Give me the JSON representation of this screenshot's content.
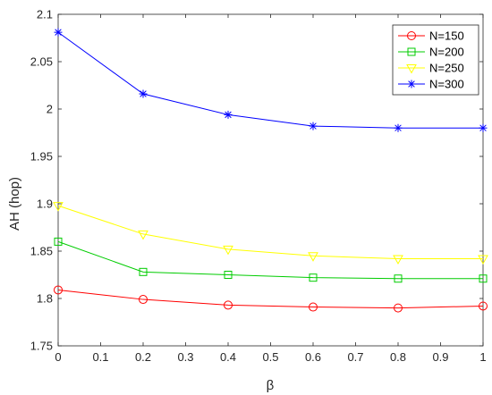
{
  "chart_data": {
    "type": "line",
    "title": "",
    "xlabel": "β",
    "ylabel": "AH (hop)",
    "x": [
      0,
      0.2,
      0.4,
      0.6,
      0.8,
      1.0
    ],
    "xlim": [
      0,
      1
    ],
    "ylim": [
      1.75,
      2.1
    ],
    "xticks": [
      "0",
      "0.1",
      "0.2",
      "0.3",
      "0.4",
      "0.5",
      "0.6",
      "0.7",
      "0.8",
      "0.9",
      "1"
    ],
    "xtick_values": [
      0,
      0.1,
      0.2,
      0.3,
      0.4,
      0.5,
      0.6,
      0.7,
      0.8,
      0.9,
      1.0
    ],
    "yticks": [
      "1.75",
      "1.8",
      "1.85",
      "1.9",
      "1.95",
      "2",
      "2.05",
      "2.1"
    ],
    "ytick_values": [
      1.75,
      1.8,
      1.85,
      1.9,
      1.95,
      2.0,
      2.05,
      2.1
    ],
    "grid": false,
    "legend_position": "top-right",
    "series": [
      {
        "name": "N=150",
        "color": "#ff0000",
        "marker": "circle",
        "values": [
          1.809,
          1.799,
          1.793,
          1.791,
          1.79,
          1.792
        ]
      },
      {
        "name": "N=200",
        "color": "#00cc00",
        "marker": "square",
        "values": [
          1.86,
          1.828,
          1.825,
          1.822,
          1.821,
          1.821
        ]
      },
      {
        "name": "N=250",
        "color": "#ffff00",
        "marker": "triangle",
        "values": [
          1.898,
          1.868,
          1.852,
          1.845,
          1.842,
          1.842
        ]
      },
      {
        "name": "N=300",
        "color": "#0000ff",
        "marker": "asterisk",
        "values": [
          2.081,
          2.016,
          1.994,
          1.982,
          1.98,
          1.98
        ]
      }
    ]
  }
}
